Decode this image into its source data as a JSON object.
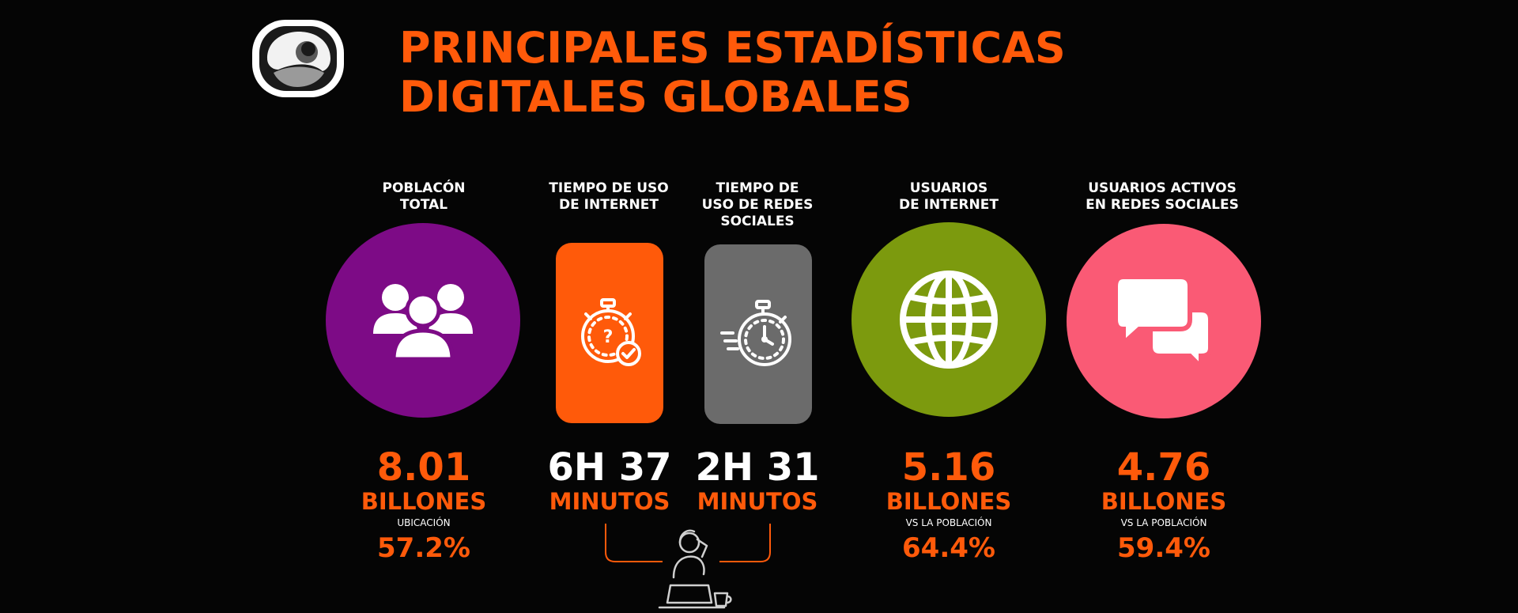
{
  "colors": {
    "accent": "#ff5a0a",
    "purple": "#7d0b86",
    "orange": "#ff5a0a",
    "gray": "#6b6b6b",
    "green": "#7c9a0e",
    "pink": "#fa5a75",
    "background": "#050505"
  },
  "title": {
    "line1": "PRINCIPALES ESTADÍSTICAS",
    "line2": "DIGITALES GLOBALES"
  },
  "stats": [
    {
      "label_lines": [
        "POBLACÓN",
        "TOTAL"
      ],
      "icon": "people-group-icon",
      "value": "8.01",
      "unit": "BILLONES",
      "sub_label": "UBICACIÓN",
      "percent": "57.2%"
    },
    {
      "label_lines": [
        "TIEMPO DE USO",
        "DE INTERNET"
      ],
      "icon": "stopwatch-check-icon",
      "value": "6H 37",
      "unit": "MINUTOS"
    },
    {
      "label_lines": [
        "TIEMPO DE",
        "USO DE REDES",
        "SOCIALES"
      ],
      "icon": "fast-stopwatch-icon",
      "value": "2H 31",
      "unit": "MINUTOS"
    },
    {
      "label_lines": [
        "USUARIOS",
        "DE INTERNET"
      ],
      "icon": "globe-icon",
      "value": "5.16",
      "unit": "BILLONES",
      "sub_label": "VS LA POBLACIÓN",
      "percent": "64.4%"
    },
    {
      "label_lines": [
        "USUARIOS ACTIVOS",
        "EN REDES SOCIALES"
      ],
      "icon": "chat-bubbles-icon",
      "value": "4.76",
      "unit": "BILLONES",
      "sub_label": "VS LA POBLACIÓN",
      "percent": "59.4%"
    }
  ],
  "bracket_icon": "person-at-laptop-icon"
}
